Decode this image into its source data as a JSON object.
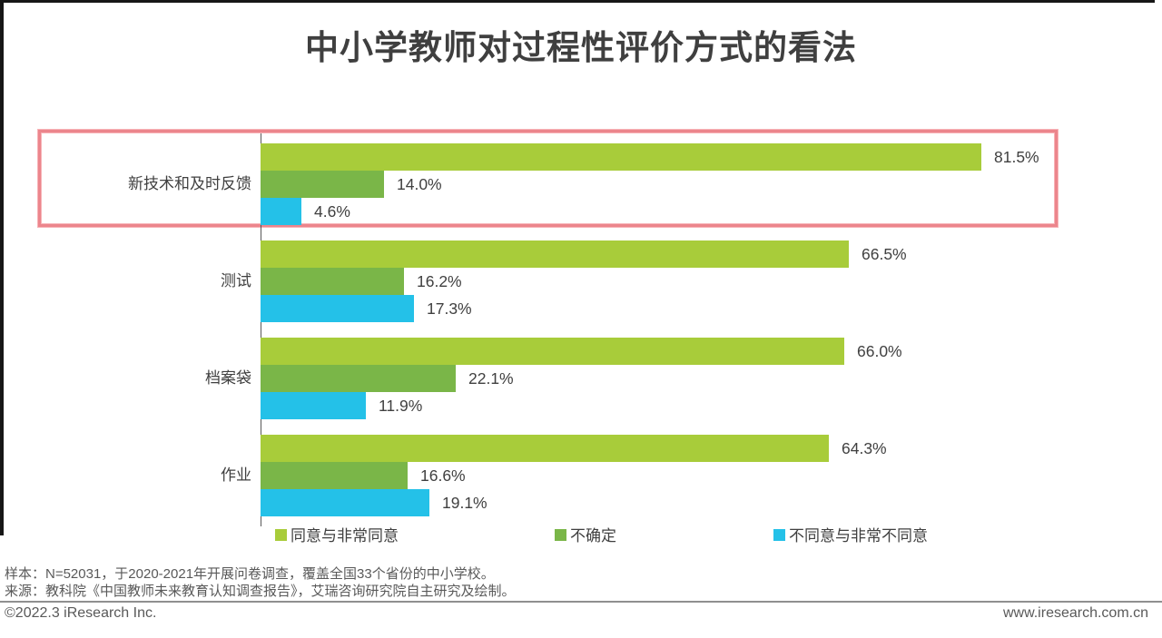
{
  "page": {
    "title": "中小学教师对过程性评价方式的看法",
    "note_sample": "样本：N=52031，于2020-2021年开展问卷调查，覆盖全国33个省份的中小学校。",
    "note_source": "来源：教科院《中国教师未来教育认知调查报告》，艾瑞咨询研究院自主研究及绘制。",
    "footer_left": "©2022.3 iResearch Inc.",
    "footer_right": "www.iresearch.com.cn"
  },
  "chart_data": {
    "type": "bar",
    "orientation": "horizontal",
    "title": "中小学教师对过程性评价方式的看法",
    "categories": [
      "新技术和及时反馈",
      "测试",
      "档案袋",
      "作业"
    ],
    "series": [
      {
        "name": "同意与非常同意",
        "color": "#a8cc3a",
        "values": [
          81.5,
          66.5,
          66.0,
          64.3
        ]
      },
      {
        "name": "不确定",
        "color": "#7ab648",
        "values": [
          14.0,
          16.2,
          22.1,
          16.6
        ]
      },
      {
        "name": "不同意与非常不同意",
        "color": "#24c1e8",
        "values": [
          4.6,
          17.3,
          11.9,
          19.1
        ]
      }
    ],
    "value_suffix": "%",
    "xlim": [
      0,
      100
    ],
    "grid": "off",
    "legend_position": "bottom",
    "highlight": {
      "category": "新技术和及时反馈",
      "box_color": "#ec858c"
    },
    "colors": {
      "agree": "#a8cc3a",
      "uncertain": "#7ab648",
      "disagree": "#24c1e8",
      "highlight_border": "#ec858c",
      "title_text": "#3f3f3f",
      "label_text": "#404040",
      "note_text": "#595959"
    }
  }
}
